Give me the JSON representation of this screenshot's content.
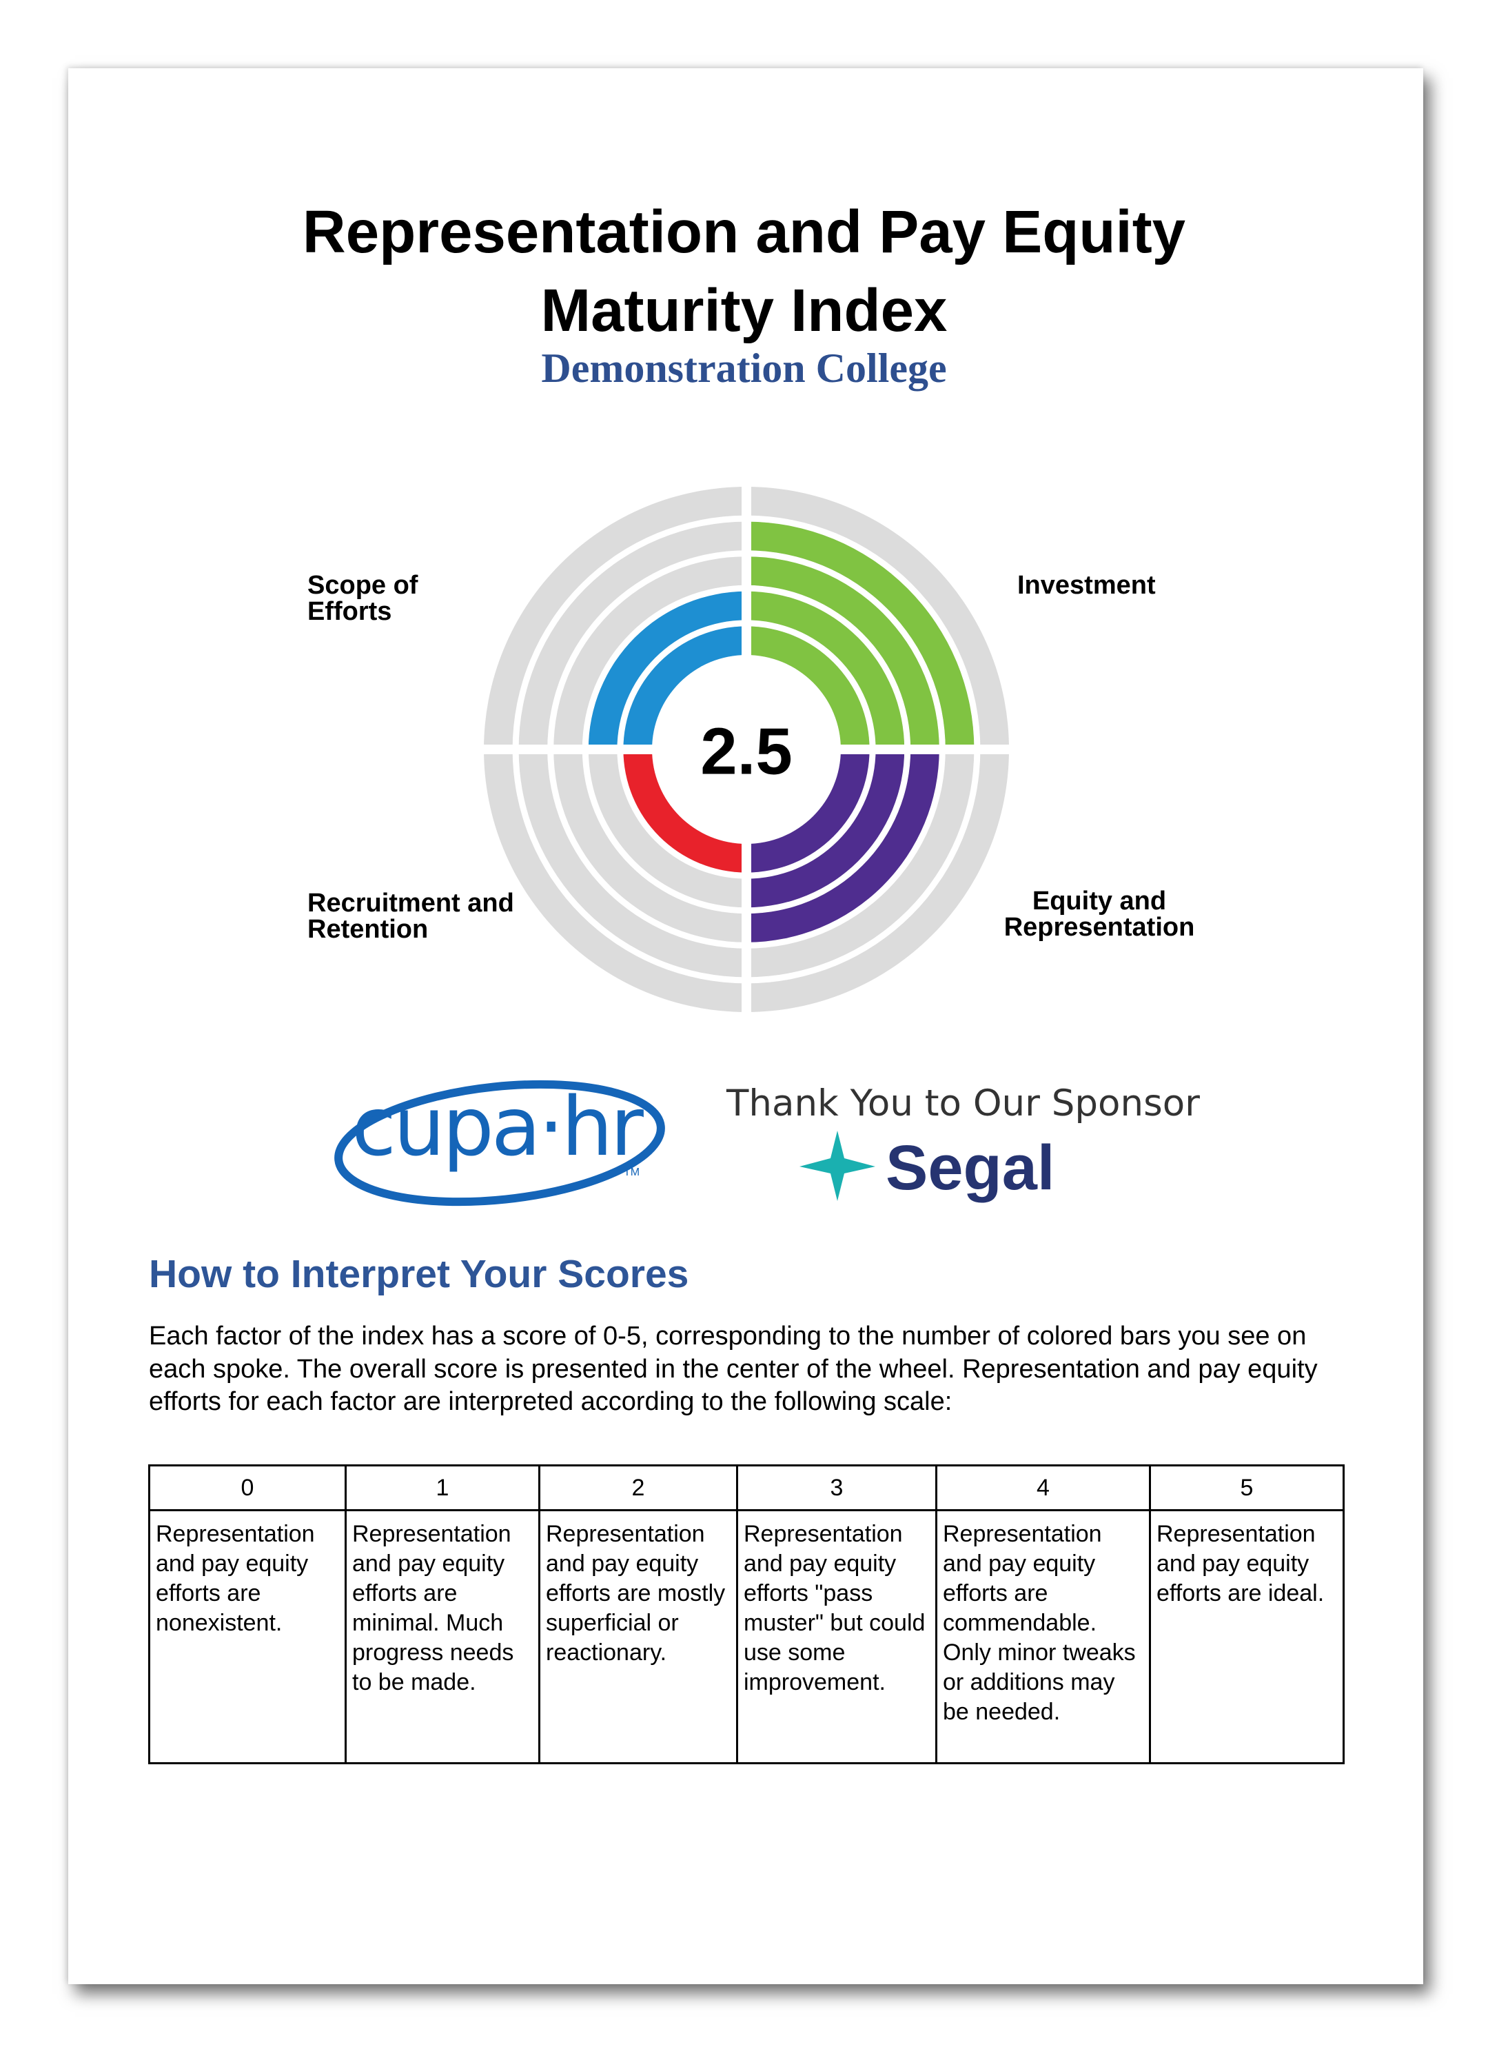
{
  "header": {
    "title": "Representation and Pay Equity Maturity Index",
    "subtitle": "Demonstration College"
  },
  "chart_data": {
    "type": "radial",
    "categories": [
      "Scope of Efforts",
      "Investment",
      "Equity and Representation",
      "Recruitment and Retention"
    ],
    "values": [
      2,
      4,
      3,
      1
    ],
    "colors": [
      "#1e8fd2",
      "#80c342",
      "#4f2d8f",
      "#e8222b"
    ],
    "rlim": [
      0,
      5
    ],
    "center_value": 2.5,
    "track_color": "#dcdcdc"
  },
  "logos": {
    "cupa": "cupa·hr",
    "cupa_tm": "TM",
    "sponsor_text": "Thank You to Our Sponsor",
    "sponsor": "Segal"
  },
  "section": {
    "heading": "How to Interpret Your Scores",
    "paragraph": "Each factor of the index has a score of 0-5, corresponding to the number of colored bars you see on each spoke. The overall score is presented in the center of the wheel. Representation and pay equity efforts for each factor are interpreted according to the following scale:"
  },
  "table": {
    "columns": [
      "0",
      "1",
      "2",
      "3",
      "4",
      "5"
    ],
    "rows": [
      [
        "Representation and pay equity efforts are nonexistent.",
        "Representation and pay equity efforts are minimal. Much progress needs to be made.",
        "Representation and pay equity efforts are mostly superficial or reactionary.",
        "Representation and pay equity efforts \"pass muster\" but could use some improvement.",
        "Representation and pay equity efforts are commendable. Only minor tweaks or additions may be needed.",
        "Representation and pay equity efforts are ideal."
      ]
    ]
  }
}
